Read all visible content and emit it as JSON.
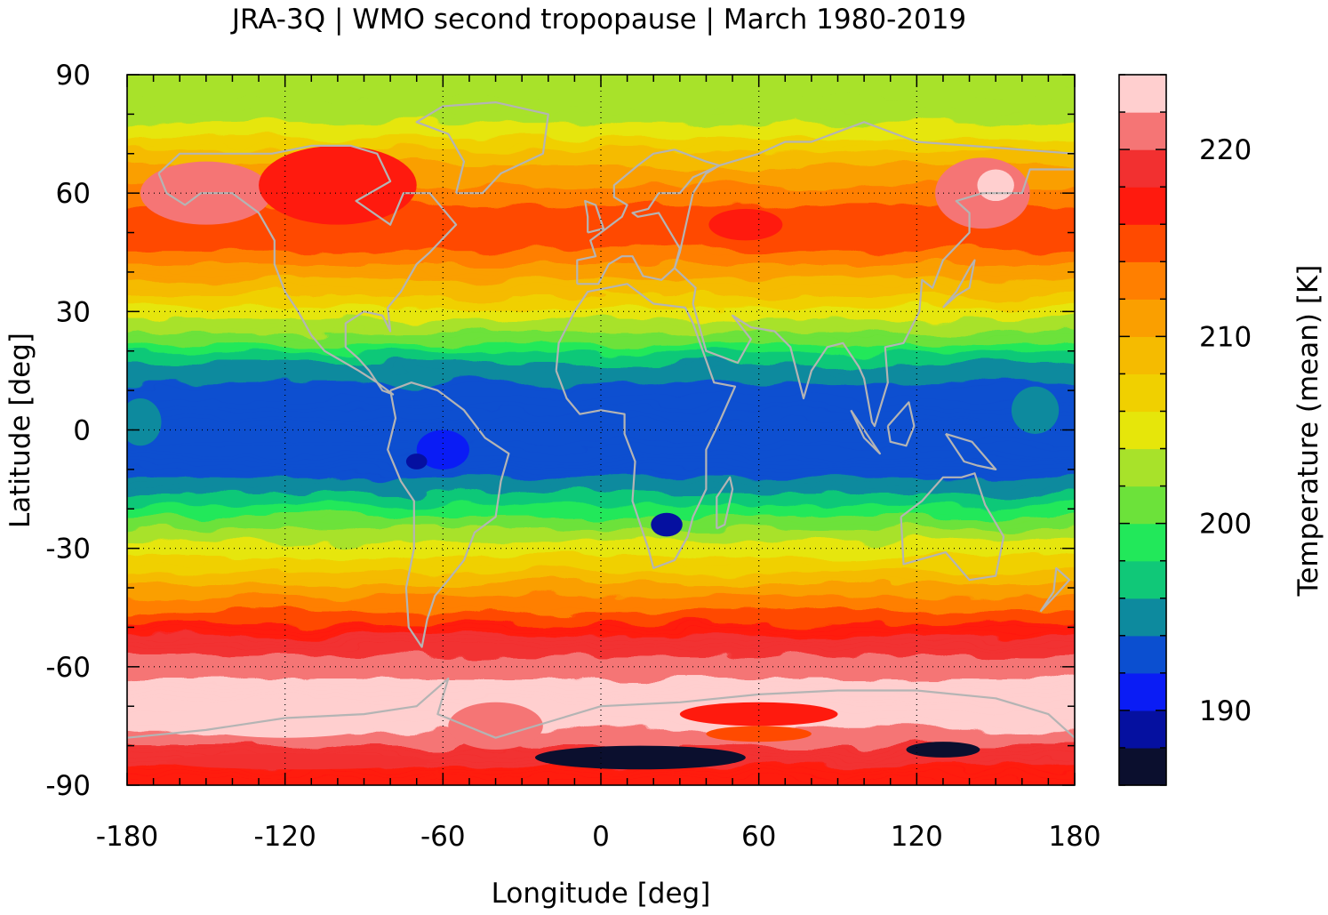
{
  "chart_data": {
    "type": "heatmap",
    "title": "JRA-3Q | WMO second tropopause | March 1980-2019",
    "xlabel": "Longitude [deg]",
    "ylabel": "Latitude [deg]",
    "colorbar_label": "Temperature (mean) [K]",
    "xlim": [
      -180,
      180
    ],
    "ylim": [
      -90,
      90
    ],
    "x_ticks": [
      -180,
      -120,
      -60,
      0,
      60,
      120,
      180
    ],
    "y_ticks": [
      -90,
      -60,
      -30,
      0,
      30,
      60,
      90
    ],
    "colorbar_ticks": [
      190,
      200,
      210,
      220
    ],
    "colorbar_range": [
      186,
      224
    ],
    "grid": true,
    "coastlines": "gray",
    "colorbar": {
      "levels": [
        {
          "from": 186,
          "to": 188,
          "color": "#0b0f2e"
        },
        {
          "from": 188,
          "to": 190,
          "color": "#0510a0"
        },
        {
          "from": 190,
          "to": 192,
          "color": "#0a1cf5"
        },
        {
          "from": 192,
          "to": 194,
          "color": "#0b4fd0"
        },
        {
          "from": 194,
          "to": 196,
          "color": "#0d8a9e"
        },
        {
          "from": 196,
          "to": 198,
          "color": "#10c878"
        },
        {
          "from": 198,
          "to": 200,
          "color": "#22e85a"
        },
        {
          "from": 200,
          "to": 202,
          "color": "#6ce23a"
        },
        {
          "from": 202,
          "to": 204,
          "color": "#a8e22a"
        },
        {
          "from": 204,
          "to": 206,
          "color": "#e6e60a"
        },
        {
          "from": 206,
          "to": 208,
          "color": "#f0d000"
        },
        {
          "from": 208,
          "to": 210,
          "color": "#f5bb00"
        },
        {
          "from": 210,
          "to": 212,
          "color": "#fa9f00"
        },
        {
          "from": 212,
          "to": 214,
          "color": "#ff7f00"
        },
        {
          "from": 214,
          "to": 216,
          "color": "#ff4a00"
        },
        {
          "from": 216,
          "to": 218,
          "color": "#ff1a0e"
        },
        {
          "from": 218,
          "to": 220,
          "color": "#f23030"
        },
        {
          "from": 220,
          "to": 222,
          "color": "#f57575"
        },
        {
          "from": 222,
          "to": 224,
          "color": "#ffcfcf"
        }
      ]
    },
    "zonal_mean_profile": {
      "latitude": [
        -90,
        -85,
        -80,
        -75,
        -70,
        -65,
        -60,
        -55,
        -50,
        -45,
        -40,
        -35,
        -30,
        -25,
        -20,
        -15,
        -10,
        -5,
        0,
        5,
        10,
        15,
        20,
        25,
        30,
        35,
        40,
        45,
        50,
        55,
        60,
        65,
        70,
        75,
        80,
        85,
        90
      ],
      "temperature": [
        217,
        218,
        220,
        222.5,
        223,
        222.5,
        221,
        219.5,
        216.5,
        213.5,
        210.5,
        207.5,
        205,
        202,
        198.5,
        195,
        193,
        193,
        193,
        193,
        193,
        195,
        198,
        202,
        205.5,
        208.5,
        211,
        213.5,
        215.5,
        215,
        212.5,
        211,
        208.5,
        205,
        203.5,
        203,
        203
      ]
    }
  }
}
